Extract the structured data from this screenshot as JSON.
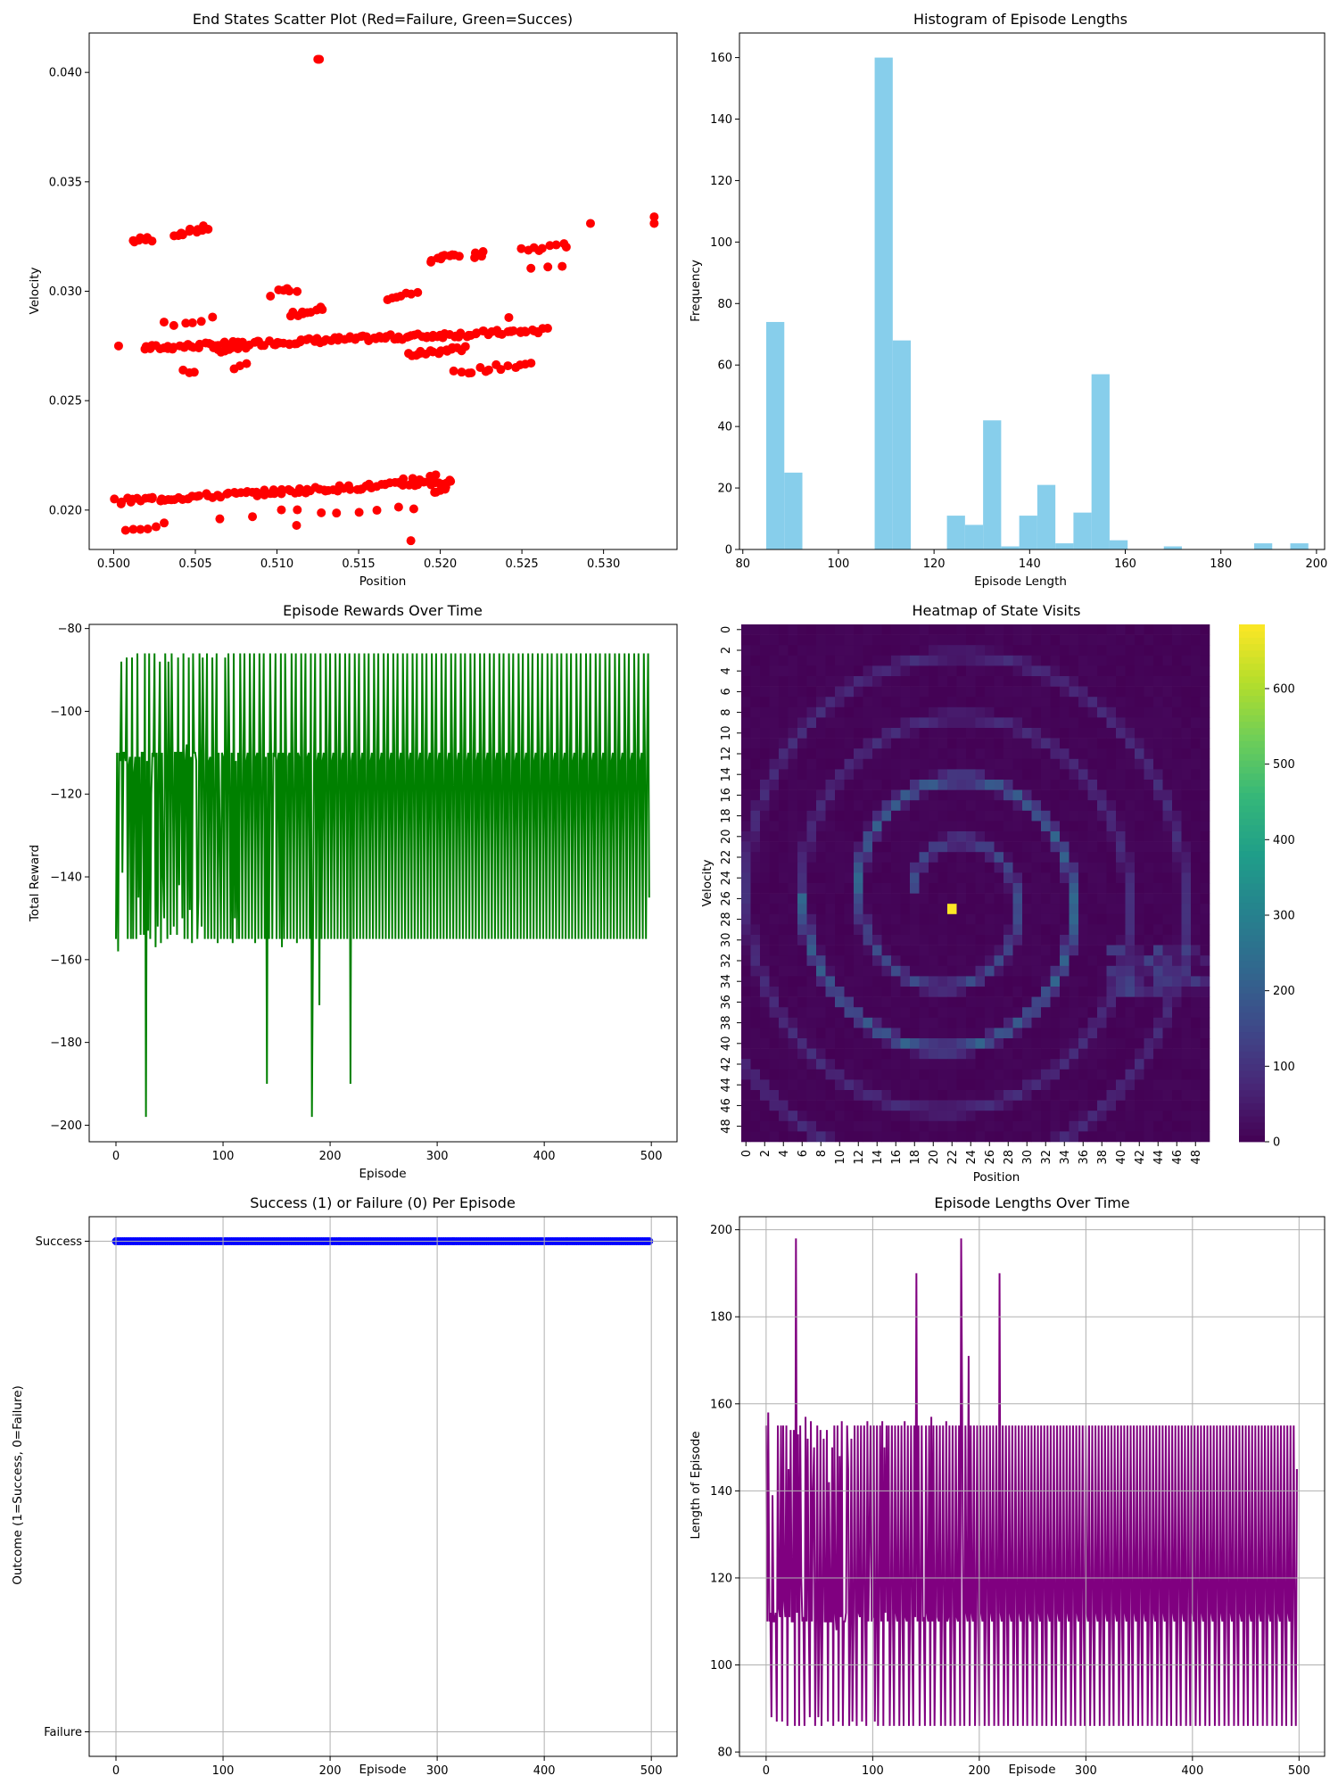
{
  "colors": {
    "scatter": "#ff0000",
    "histogram": "#87ceeb",
    "rewards": "#008000",
    "outcome": "#0000ff",
    "lengths": "#800080",
    "grid": "#b0b0b0"
  },
  "chart_data": [
    {
      "id": "scatter",
      "type": "scatter",
      "title": "End States Scatter Plot (Red=Failure, Green=Succes)",
      "xlabel": "Position",
      "ylabel": "Velocity",
      "xlim": [
        0.4985,
        0.5345
      ],
      "ylim": [
        0.0182,
        0.0418
      ],
      "xticks": [
        0.5,
        0.505,
        0.51,
        0.515,
        0.52,
        0.525,
        0.53
      ],
      "xtick_labels": [
        "0.500",
        "0.505",
        "0.510",
        "0.515",
        "0.520",
        "0.525",
        "0.530"
      ],
      "yticks": [
        0.02,
        0.025,
        0.03,
        0.035,
        0.04
      ],
      "ytick_labels": [
        "0.020",
        "0.025",
        "0.030",
        "0.035",
        "0.040"
      ],
      "clusters": [
        {
          "x0": 0.5012,
          "y0": 0.0323,
          "x1": 0.5023,
          "y1": 0.0324,
          "n": 7
        },
        {
          "x0": 0.5037,
          "y0": 0.0326,
          "x1": 0.5058,
          "y1": 0.0329,
          "n": 11
        },
        {
          "x0": 0.5019,
          "y0": 0.0274,
          "x1": 0.5265,
          "y1": 0.0282,
          "n": 130
        },
        {
          "x0": 0.5031,
          "y0": 0.0285,
          "x1": 0.5061,
          "y1": 0.0287,
          "n": 6
        },
        {
          "x0": 0.5063,
          "y0": 0.0273,
          "x1": 0.5081,
          "y1": 0.0275,
          "n": 8
        },
        {
          "x0": 0.5044,
          "y0": 0.0264,
          "x1": 0.5049,
          "y1": 0.0264,
          "n": 3
        },
        {
          "x0": 0.5075,
          "y0": 0.0265,
          "x1": 0.508,
          "y1": 0.0266,
          "n": 3
        },
        {
          "x0": 0.5097,
          "y0": 0.0299,
          "x1": 0.5112,
          "y1": 0.0301,
          "n": 6
        },
        {
          "x0": 0.5108,
          "y0": 0.0289,
          "x1": 0.5129,
          "y1": 0.0292,
          "n": 10
        },
        {
          "x0": 0.5169,
          "y0": 0.0297,
          "x1": 0.5185,
          "y1": 0.0299,
          "n": 7
        },
        {
          "x0": 0.5181,
          "y0": 0.0271,
          "x1": 0.5214,
          "y1": 0.0274,
          "n": 20
        },
        {
          "x0": 0.5193,
          "y0": 0.0314,
          "x1": 0.5212,
          "y1": 0.0317,
          "n": 10
        },
        {
          "x0": 0.5221,
          "y0": 0.0316,
          "x1": 0.5227,
          "y1": 0.0317,
          "n": 4
        },
        {
          "x0": 0.5209,
          "y0": 0.0263,
          "x1": 0.5257,
          "y1": 0.0267,
          "n": 14
        },
        {
          "x0": 0.5249,
          "y0": 0.0319,
          "x1": 0.5278,
          "y1": 0.0321,
          "n": 9
        },
        {
          "x0": 0.5255,
          "y0": 0.0311,
          "x1": 0.5275,
          "y1": 0.0312,
          "n": 3
        },
        {
          "x0": 0.5001,
          "y0": 0.0204,
          "x1": 0.5207,
          "y1": 0.0213,
          "n": 95
        },
        {
          "x0": 0.5006,
          "y0": 0.0191,
          "x1": 0.5031,
          "y1": 0.0193,
          "n": 6
        },
        {
          "x0": 0.5102,
          "y0": 0.0199,
          "x1": 0.5185,
          "y1": 0.0201,
          "n": 8
        },
        {
          "x0": 0.5178,
          "y0": 0.0214,
          "x1": 0.5198,
          "y1": 0.0216,
          "n": 5
        },
        {
          "x0": 0.5196,
          "y0": 0.0208,
          "x1": 0.5207,
          "y1": 0.0212,
          "n": 6
        }
      ],
      "extra_points": [
        {
          "x": 0.5003,
          "y": 0.0275
        },
        {
          "x": 0.5125,
          "y": 0.0406
        },
        {
          "x": 0.5126,
          "y": 0.0406
        },
        {
          "x": 0.5292,
          "y": 0.0331
        },
        {
          "x": 0.5331,
          "y": 0.0334
        },
        {
          "x": 0.5331,
          "y": 0.0331
        },
        {
          "x": 0.5242,
          "y": 0.0288
        },
        {
          "x": 0.5112,
          "y": 0.0193
        },
        {
          "x": 0.5182,
          "y": 0.0186
        },
        {
          "x": 0.5065,
          "y": 0.0196
        },
        {
          "x": 0.5085,
          "y": 0.0197
        }
      ]
    },
    {
      "id": "histogram",
      "type": "bar",
      "title": "Histogram of Episode Lengths",
      "xlabel": "Episode Length",
      "ylabel": "Frequency",
      "xlim": [
        79.3,
        201.7
      ],
      "ylim": [
        0,
        168
      ],
      "xticks": [
        80,
        100,
        120,
        140,
        160,
        180,
        200
      ],
      "yticks": [
        0,
        20,
        40,
        60,
        80,
        100,
        120,
        140,
        160
      ],
      "bin_start": 84.9,
      "bin_width": 3.78,
      "counts": [
        74,
        25,
        0,
        0,
        0,
        0,
        160,
        68,
        0,
        0,
        11,
        8,
        42,
        1,
        11,
        21,
        2,
        12,
        57,
        3,
        0,
        0,
        1,
        0,
        0,
        0,
        0,
        2,
        0,
        2
      ]
    },
    {
      "id": "rewards",
      "type": "line",
      "title": "Episode Rewards Over Time",
      "xlabel": "Episode",
      "ylabel": "Total Reward",
      "xlim": [
        -25,
        524
      ],
      "ylim": [
        -204,
        -79
      ],
      "xticks": [
        0,
        100,
        200,
        300,
        400,
        500
      ],
      "yticks": [
        -80,
        -100,
        -120,
        -140,
        -160,
        -180,
        -200
      ],
      "series": [
        {
          "start": 0,
          "y_source": "lengths",
          "transform": "-x"
        }
      ]
    },
    {
      "id": "heatmap",
      "type": "heatmap",
      "title": "Heatmap of State Visits",
      "xlabel": "Position",
      "ylabel": "Velocity",
      "size": 50,
      "xtick_labels": [
        "0",
        "2",
        "4",
        "6",
        "8",
        "10",
        "12",
        "14",
        "16",
        "18",
        "20",
        "22",
        "24",
        "26",
        "28",
        "30",
        "32",
        "34",
        "36",
        "38",
        "40",
        "42",
        "44",
        "46",
        "48"
      ],
      "ytick_labels": [
        "0",
        "2",
        "4",
        "6",
        "8",
        "10",
        "12",
        "14",
        "16",
        "18",
        "20",
        "22",
        "24",
        "26",
        "28",
        "30",
        "32",
        "34",
        "36",
        "38",
        "40",
        "42",
        "44",
        "46",
        "48"
      ],
      "colorbar_ticks": [
        0,
        100,
        200,
        300,
        400,
        500,
        600
      ],
      "vmin": 0,
      "vmax": 685,
      "ring_center": [
        22,
        26
      ],
      "hot_cell": {
        "row": 27,
        "col": 22,
        "value": 685
      }
    },
    {
      "id": "outcome",
      "type": "scatter",
      "title": "Success (1) or Failure (0) Per Episode",
      "xlabel": "Episode",
      "ylabel": "Outcome (1=Success, 0=Failure)",
      "xlim": [
        -25,
        524
      ],
      "ylim": [
        0,
        1
      ],
      "xticks": [
        0,
        100,
        200,
        300,
        400,
        500
      ],
      "ytick_labels": [
        "Failure",
        "Success"
      ],
      "episodes": 500,
      "value": 1
    },
    {
      "id": "lengths",
      "type": "line",
      "title": "Episode Lengths Over Time",
      "xlabel": "Episode",
      "ylabel": "Length of Episode",
      "xlim": [
        -25,
        524
      ],
      "ylim": [
        79,
        203
      ],
      "xticks": [
        0,
        100,
        200,
        300,
        400,
        500
      ],
      "yticks": [
        80,
        100,
        120,
        140,
        160,
        180,
        200
      ],
      "grid": true,
      "series": [
        {
          "start": 0,
          "values": [
            155,
            110,
            158,
            110,
            112,
            88,
            139,
            110,
            110,
            112,
            87,
            155,
            113,
            111,
            155,
            87,
            155,
            115,
            111,
            155,
            86,
            145,
            111,
            154,
            110,
            110,
            154,
            86,
            198,
            112,
            153,
            86,
            155,
            120,
            110,
            111,
            86,
            157,
            110,
            152,
            111,
            88,
            156,
            110,
            140,
            150,
            86,
            111,
            155,
            88,
            110,
            154,
            86,
            113,
            152,
            110,
            110,
            154,
            87,
            142,
            110,
            110,
            150,
            86,
            155,
            112,
            108,
            155,
            87,
            148,
            111,
            156,
            86,
            110,
            110,
            112,
            155,
            145,
            86,
            110,
            152,
            87,
            110,
            155,
            111,
            86,
            155,
            112,
            111,
            155,
            87,
            113,
            155,
            110,
            86,
            156,
            110,
            130,
            155,
            110,
            111,
            155,
            87,
            110,
            155,
            86,
            112,
            155,
            110,
            156,
            86,
            150,
            112,
            155,
            110,
            155,
            86,
            111,
            155,
            111,
            86,
            155,
            112,
            110,
            155,
            86,
            113,
            155,
            110,
            86,
            156,
            111,
            110,
            155,
            86,
            112,
            155,
            110,
            86,
            155,
            111,
            190,
            110,
            155,
            86,
            112,
            155,
            110,
            111,
            86,
            155,
            112,
            110,
            155,
            86,
            157,
            110,
            155,
            86,
            111,
            155,
            111,
            110,
            155,
            86,
            113,
            155,
            110,
            86,
            156,
            110,
            111,
            155,
            86,
            112,
            155,
            110,
            86,
            155,
            111,
            110,
            155,
            86,
            198,
            155,
            110,
            86,
            155,
            112,
            110,
            171,
            86,
            155,
            112,
            110,
            155,
            86,
            111,
            155,
            110,
            86,
            155,
            112,
            110,
            155,
            86,
            111,
            155,
            110,
            86,
            155,
            112,
            110,
            155,
            86,
            111,
            155,
            110,
            86,
            190,
            112,
            110,
            155,
            86,
            111,
            155,
            110,
            86,
            155,
            112,
            110,
            155,
            86,
            111,
            155,
            110,
            86,
            155,
            112,
            110,
            155,
            86,
            111,
            155,
            110,
            86,
            155,
            112,
            110,
            155,
            86,
            111,
            155,
            110,
            86,
            155,
            112,
            110,
            155,
            86,
            111,
            155,
            110,
            86,
            155,
            112,
            110,
            155,
            86,
            111,
            155,
            110,
            86,
            155,
            112,
            110,
            155,
            86,
            111,
            155,
            110,
            86,
            155,
            112,
            110,
            155,
            86,
            111,
            155,
            110,
            86,
            155,
            112,
            110,
            155,
            86,
            111,
            155,
            110,
            86,
            155,
            112,
            110,
            155,
            86,
            111,
            155,
            110,
            86,
            155,
            112,
            110,
            155,
            86,
            111,
            155,
            110,
            86,
            155,
            112,
            110,
            155,
            86,
            111,
            155,
            110,
            86,
            155,
            112,
            110,
            155,
            86,
            111,
            155,
            110,
            86,
            155,
            112,
            110,
            155,
            86,
            111,
            155,
            110,
            86,
            155,
            112,
            110,
            155,
            86,
            111,
            155,
            110,
            86,
            155,
            112,
            110,
            155,
            86,
            111,
            155,
            110,
            86,
            155,
            112,
            110,
            155,
            86,
            111,
            155,
            110,
            86,
            155,
            112,
            110,
            155,
            86,
            111,
            155,
            110,
            86,
            155,
            112,
            110,
            155,
            86,
            111,
            155,
            110,
            86,
            155,
            112,
            110,
            155,
            86,
            111,
            155,
            110,
            86,
            155,
            112,
            110,
            155,
            86,
            111,
            155,
            110,
            86,
            155,
            112,
            110,
            155,
            86,
            111,
            155,
            110,
            86,
            155,
            112,
            110,
            155,
            86,
            111,
            155,
            110,
            86,
            155,
            112,
            110,
            155,
            86,
            111,
            155,
            110,
            86,
            155,
            112,
            110,
            155,
            86,
            111,
            155,
            110,
            86,
            155,
            112,
            110,
            155,
            86,
            111,
            155,
            110,
            86,
            155,
            112,
            110,
            155,
            86,
            111,
            155,
            110,
            86,
            155,
            112,
            110,
            155,
            86,
            111,
            155,
            110,
            86,
            155,
            112,
            110,
            155,
            86,
            111,
            155,
            110,
            86,
            155,
            112,
            110,
            155,
            86,
            111,
            155,
            110,
            86,
            155,
            112,
            110,
            155,
            86,
            111,
            155,
            110,
            86,
            145
          ]
        }
      ]
    }
  ]
}
